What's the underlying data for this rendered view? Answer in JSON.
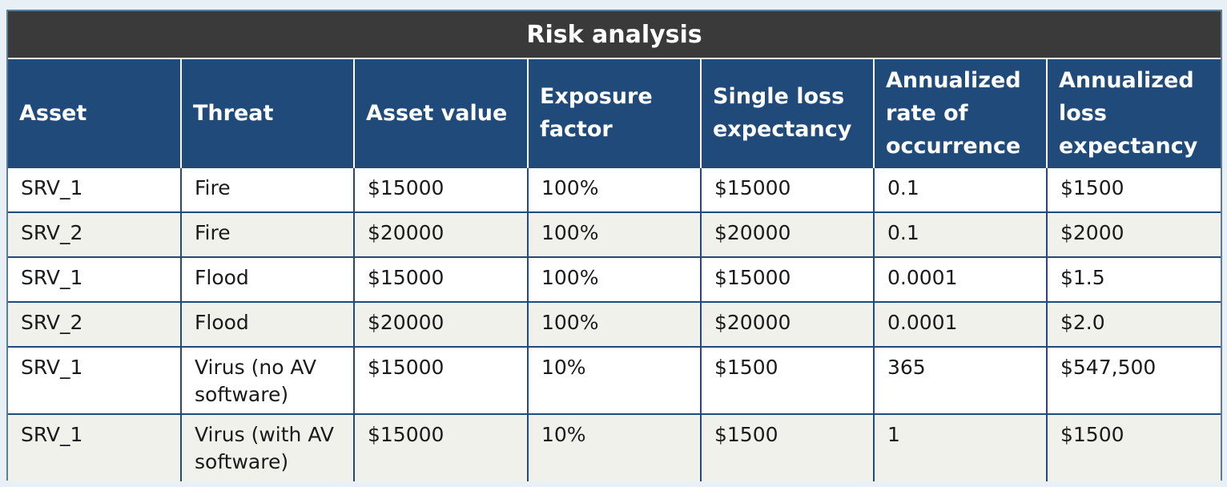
{
  "table": {
    "title": "Risk analysis",
    "columns": [
      "Asset",
      "Threat",
      "Asset value",
      "Exposure factor",
      "Single loss expectancy",
      "Annualized rate of occurrence",
      "Annualized loss expectancy"
    ],
    "rows": [
      [
        "SRV_1",
        "Fire",
        "$15000",
        "100%",
        "$15000",
        "0.1",
        "$1500"
      ],
      [
        "SRV_2",
        "Fire",
        "$20000",
        "100%",
        "$20000",
        "0.1",
        "$2000"
      ],
      [
        "SRV_1",
        "Flood",
        "$15000",
        "100%",
        "$15000",
        "0.0001",
        "$1.5"
      ],
      [
        "SRV_2",
        "Flood",
        "$20000",
        "100%",
        "$20000",
        "0.0001",
        "$2.0"
      ],
      [
        "SRV_1",
        "Virus (no AV software)",
        "$15000",
        "10%",
        "$1500",
        "365",
        "$547,500"
      ],
      [
        "SRV_1",
        "Virus (with AV software)",
        "$15000",
        "10%",
        "$1500",
        "1",
        "$1500"
      ]
    ]
  }
}
